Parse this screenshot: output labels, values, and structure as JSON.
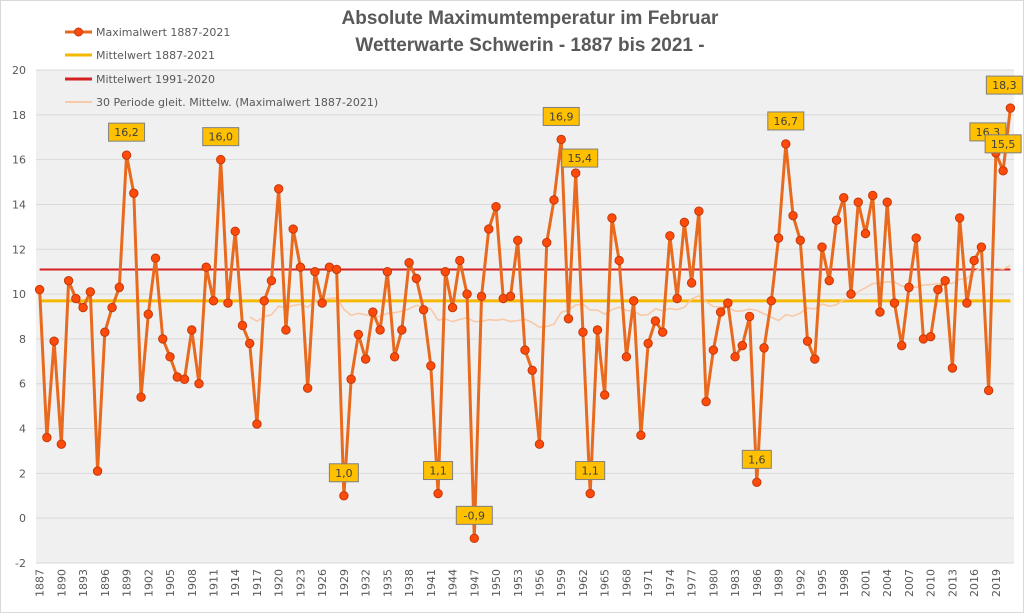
{
  "chart_data": {
    "type": "line",
    "title": "Absolute Maximumtemperatur im Februar",
    "subtitle": "Wetterwarte Schwerin - 1887 bis 2021 -",
    "xlabel": "",
    "ylabel": "",
    "ylim": [
      -2,
      20
    ],
    "yticks": [
      "-2",
      "0",
      "2",
      "4",
      "6",
      "8",
      "10",
      "12",
      "14",
      "16",
      "18",
      "20"
    ],
    "grid": true,
    "legend_position": "top-left",
    "x_start": 1887,
    "x_end": 2021,
    "xtick_step": 3,
    "colors": {
      "max": "#e86a1f",
      "marker": "#ff4a0a",
      "mean_all": "#f5b800",
      "mean_1991_2020": "#d42020",
      "moving_avg": "#f8c9a8",
      "label_bg": "#ffc000",
      "plot_bg": "#f0f0f0"
    },
    "series": [
      {
        "name": "Maximalwert 1887-2021",
        "values": [
          10.2,
          3.6,
          7.9,
          3.3,
          10.6,
          9.8,
          9.4,
          10.1,
          2.1,
          8.3,
          9.4,
          10.3,
          16.2,
          14.5,
          5.4,
          9.1,
          11.6,
          8.0,
          7.2,
          6.3,
          6.2,
          8.4,
          6.0,
          11.2,
          9.7,
          16.0,
          9.6,
          12.8,
          8.6,
          7.8,
          4.2,
          9.7,
          10.6,
          14.7,
          8.4,
          12.9,
          11.2,
          5.8,
          11.0,
          9.6,
          11.2,
          11.1,
          1.0,
          6.2,
          8.2,
          7.1,
          9.2,
          8.4,
          11.0,
          7.2,
          8.4,
          11.4,
          10.7,
          9.3,
          6.8,
          1.1,
          11.0,
          9.4,
          11.5,
          10.0,
          -0.9,
          9.9,
          12.9,
          13.9,
          9.8,
          9.9,
          12.4,
          7.5,
          6.6,
          3.3,
          12.3,
          14.2,
          16.9,
          8.9,
          15.4,
          8.3,
          1.1,
          8.4,
          5.5,
          13.4,
          11.5,
          7.2,
          9.7,
          3.7,
          7.8,
          8.8,
          8.3,
          12.6,
          9.8,
          13.2,
          10.5,
          13.7,
          5.2,
          7.5,
          9.2,
          9.6,
          7.2,
          7.7,
          9.0,
          1.6,
          7.6,
          9.7,
          12.5,
          16.7,
          13.5,
          12.4,
          7.9,
          7.1,
          12.1,
          10.6,
          13.3,
          14.3,
          10.0,
          14.1,
          12.7,
          14.4,
          9.2,
          14.1,
          9.6,
          7.7,
          10.3,
          12.5,
          8.0,
          8.1,
          10.2,
          10.6,
          6.7,
          13.4,
          9.6,
          11.5,
          12.1,
          5.7,
          16.3,
          15.5,
          18.3
        ]
      },
      {
        "name": "Mittelwert 1887-2021",
        "value": 9.7
      },
      {
        "name": "Mittelwert 1991-2020",
        "value": 11.1
      },
      {
        "name": "30 Periode gleit. Mittelw. (Maximalwert 1887-2021)",
        "window": 30
      }
    ],
    "annotations": [
      {
        "year": 1899,
        "label": "16,2"
      },
      {
        "year": 1912,
        "label": "16,0"
      },
      {
        "year": 1929,
        "label": "1,0"
      },
      {
        "year": 1942,
        "label": "1,1"
      },
      {
        "year": 1947,
        "label": "-0,9"
      },
      {
        "year": 1959,
        "label": "16,9"
      },
      {
        "year": 1961,
        "label": "15,4"
      },
      {
        "year": 1963,
        "label": "1,1"
      },
      {
        "year": 1986,
        "label": "1,6"
      },
      {
        "year": 1990,
        "label": "16,7"
      },
      {
        "year": 2019,
        "label": "16,3"
      },
      {
        "year": 2020,
        "label": "15,5"
      },
      {
        "year": 2021,
        "label": "18,3"
      }
    ]
  }
}
